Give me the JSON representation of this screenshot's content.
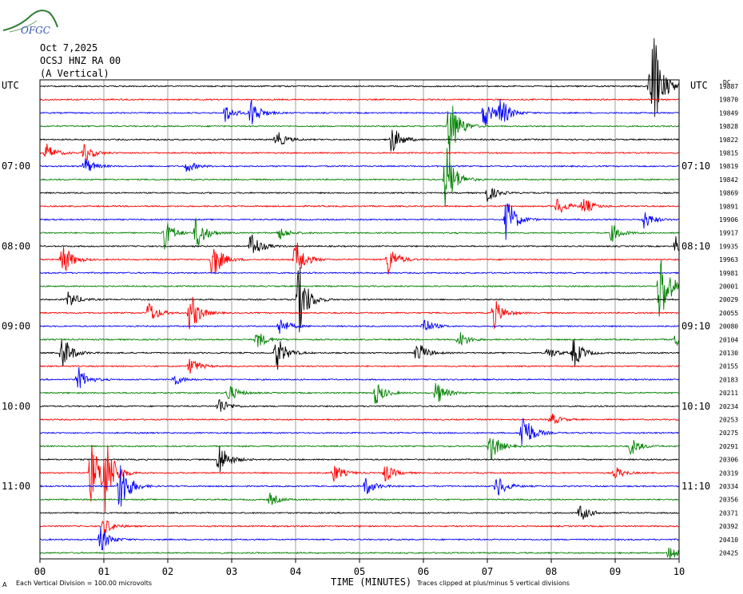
{
  "logo": {
    "text": "OFGC",
    "color": "#2e7d32",
    "text_color": "#3355aa"
  },
  "header": {
    "date": "Oct 7,2025",
    "station": "OCSJ HNZ RA 00",
    "component": "(A Vertical)",
    "left_zone": "UTC",
    "right_zone": "UTC",
    "dc_label": "DC"
  },
  "chart_data": {
    "type": "line",
    "xlabel": "TIME (MINUTES)",
    "xlim": [
      0,
      10
    ],
    "x_ticks": [
      "00",
      "01",
      "02",
      "03",
      "04",
      "05",
      "06",
      "07",
      "08",
      "09",
      "10"
    ],
    "trace_colors": [
      "#000000",
      "#ff0000",
      "#0000ff",
      "#008000"
    ],
    "left_time_labels": [
      {
        "row": 6,
        "label": "07:00"
      },
      {
        "row": 12,
        "label": "08:00"
      },
      {
        "row": 18,
        "label": "09:00"
      },
      {
        "row": 24,
        "label": "10:00"
      },
      {
        "row": 30,
        "label": "11:00"
      }
    ],
    "right_time_labels": [
      {
        "row": 6,
        "label": "07:10"
      },
      {
        "row": 12,
        "label": "08:10"
      },
      {
        "row": 18,
        "label": "09:10"
      },
      {
        "row": 24,
        "label": "10:10"
      },
      {
        "row": 30,
        "label": "11:10"
      }
    ],
    "dc_offsets": [
      "19887",
      "19870",
      "19849",
      "19828",
      "19822",
      "19815",
      "19819",
      "19842",
      "19869",
      "19891",
      "19906",
      "19917",
      "19935",
      "19963",
      "19981",
      "20001",
      "20029",
      "20055",
      "20080",
      "20104",
      "20130",
      "20155",
      "20183",
      "20211",
      "20234",
      "20253",
      "20275",
      "20291",
      "20306",
      "20319",
      "20334",
      "20356",
      "20371",
      "20392",
      "20410",
      "20425"
    ],
    "events": [
      [
        0,
        9.6,
        14
      ],
      [
        0,
        9.55,
        6
      ],
      [
        2,
        3.3,
        5
      ],
      [
        2,
        2.9,
        3
      ],
      [
        2,
        7.2,
        5
      ],
      [
        2,
        6.95,
        5
      ],
      [
        3,
        6.4,
        12
      ],
      [
        4,
        3.7,
        3
      ],
      [
        4,
        5.5,
        5
      ],
      [
        5,
        0.1,
        3
      ],
      [
        5,
        0.7,
        3
      ],
      [
        6,
        0.7,
        3
      ],
      [
        6,
        2.3,
        2
      ],
      [
        7,
        6.35,
        12
      ],
      [
        8,
        7.0,
        3
      ],
      [
        9,
        8.1,
        3
      ],
      [
        9,
        8.5,
        3
      ],
      [
        10,
        7.3,
        8
      ],
      [
        10,
        9.45,
        3
      ],
      [
        11,
        1.95,
        5
      ],
      [
        11,
        2.45,
        6
      ],
      [
        11,
        3.75,
        2
      ],
      [
        11,
        8.95,
        3
      ],
      [
        12,
        3.3,
        5
      ],
      [
        12,
        9.95,
        3
      ],
      [
        13,
        0.35,
        6
      ],
      [
        13,
        2.7,
        7
      ],
      [
        13,
        4.0,
        7
      ],
      [
        13,
        5.45,
        5
      ],
      [
        15,
        9.7,
        14
      ],
      [
        16,
        0.45,
        3
      ],
      [
        16,
        4.05,
        12
      ],
      [
        17,
        1.7,
        4
      ],
      [
        17,
        2.35,
        7
      ],
      [
        17,
        7.1,
        5
      ],
      [
        18,
        3.75,
        3
      ],
      [
        18,
        6.0,
        3
      ],
      [
        19,
        3.4,
        3
      ],
      [
        19,
        6.55,
        3
      ],
      [
        19,
        9.95,
        3
      ],
      [
        20,
        0.35,
        6
      ],
      [
        20,
        3.7,
        6
      ],
      [
        20,
        5.9,
        4
      ],
      [
        20,
        7.95,
        2
      ],
      [
        20,
        8.35,
        5
      ],
      [
        21,
        2.35,
        3
      ],
      [
        22,
        0.6,
        4
      ],
      [
        22,
        2.1,
        2
      ],
      [
        23,
        2.95,
        3
      ],
      [
        23,
        5.25,
        4
      ],
      [
        23,
        6.2,
        4
      ],
      [
        24,
        2.8,
        3
      ],
      [
        25,
        8.0,
        2
      ],
      [
        26,
        7.55,
        8
      ],
      [
        27,
        7.05,
        5
      ],
      [
        27,
        9.25,
        3
      ],
      [
        28,
        2.8,
        6
      ],
      [
        29,
        0.8,
        10
      ],
      [
        29,
        1.0,
        14
      ],
      [
        29,
        4.6,
        3
      ],
      [
        29,
        5.4,
        3
      ],
      [
        29,
        9.0,
        2
      ],
      [
        30,
        1.25,
        10
      ],
      [
        30,
        5.1,
        3
      ],
      [
        30,
        7.15,
        4
      ],
      [
        31,
        3.6,
        2
      ],
      [
        32,
        8.45,
        3
      ],
      [
        33,
        1.0,
        3
      ],
      [
        34,
        0.95,
        4
      ],
      [
        35,
        9.85,
        3
      ]
    ]
  },
  "footer": {
    "scale_note": "Each Vertical Division =  100.00 microvolts",
    "clip_note": "Traces clipped at plus/minus 5 vertical divisions",
    "corner_mark": "A"
  }
}
